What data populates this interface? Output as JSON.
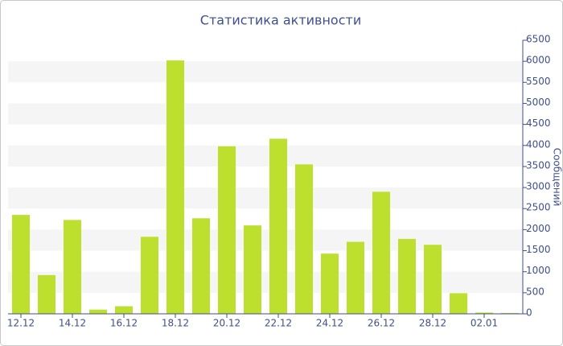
{
  "chart_data": {
    "type": "bar",
    "title": "Статистика активности",
    "y_label": "Сообщений",
    "categories": [
      "12.12",
      null,
      "14.12",
      null,
      "16.12",
      null,
      "18.12",
      null,
      "20.12",
      null,
      "22.12",
      null,
      "24.12",
      null,
      "26.12",
      null,
      "28.12",
      null,
      "02.01",
      null
    ],
    "values": [
      2350,
      920,
      2230,
      100,
      180,
      1830,
      6020,
      2270,
      3980,
      2100,
      4160,
      3550,
      1430,
      1710,
      2900,
      1780,
      1640,
      490,
      30,
      20
    ],
    "color": "#bde02e",
    "ylim": [
      0,
      6500
    ],
    "yticks": [
      0,
      500,
      1000,
      1500,
      2000,
      2500,
      3000,
      3500,
      4000,
      4500,
      5000,
      5500,
      6000,
      6500
    ],
    "grid": true
  }
}
